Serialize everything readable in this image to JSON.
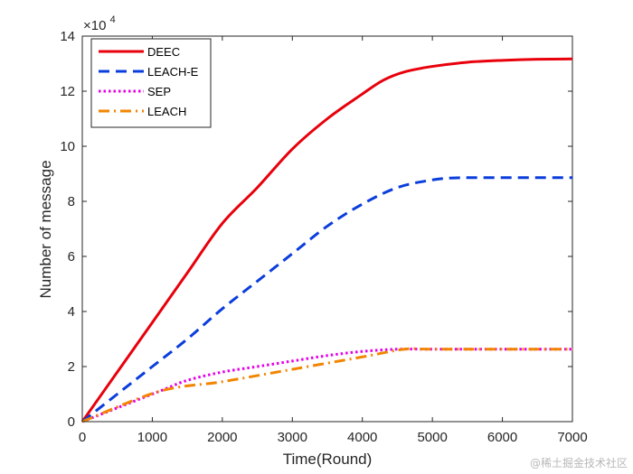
{
  "chart_data": {
    "type": "line",
    "title": "",
    "xlabel": "Time(Round)",
    "ylabel": "Number of message",
    "y_multiplier_label": "×10",
    "y_multiplier_exponent": "4",
    "xlim": [
      0,
      7000
    ],
    "ylim": [
      0,
      14
    ],
    "xticks": [
      0,
      1000,
      2000,
      3000,
      4000,
      5000,
      6000,
      7000
    ],
    "yticks": [
      0,
      2,
      4,
      6,
      8,
      10,
      12,
      14
    ],
    "xtick_labels": [
      "0",
      "1000",
      "2000",
      "3000",
      "4000",
      "5000",
      "6000",
      "7000"
    ],
    "ytick_labels": [
      "0",
      "2",
      "4",
      "6",
      "8",
      "10",
      "12",
      "14"
    ],
    "grid": false,
    "legend_position": "top-left",
    "series": [
      {
        "name": "DEEC",
        "color": "#e8000b",
        "style": "solid",
        "x": [
          0,
          500,
          1000,
          1500,
          2000,
          2500,
          3000,
          3500,
          4000,
          4300,
          4600,
          5000,
          5500,
          6000,
          6500,
          7000
        ],
        "y": [
          0,
          1.8,
          3.6,
          5.4,
          7.2,
          8.5,
          9.9,
          11.0,
          11.9,
          12.4,
          12.7,
          12.9,
          13.05,
          13.12,
          13.16,
          13.17
        ]
      },
      {
        "name": "LEACH-E",
        "color": "#0a3ddc",
        "style": "dashed",
        "x": [
          0,
          500,
          1000,
          1500,
          2000,
          2500,
          3000,
          3500,
          4000,
          4500,
          5000,
          5300,
          5600,
          6000,
          6500,
          7000
        ],
        "y": [
          0,
          1.0,
          2.0,
          3.0,
          4.1,
          5.1,
          6.1,
          7.1,
          7.9,
          8.5,
          8.78,
          8.85,
          8.86,
          8.86,
          8.86,
          8.86
        ]
      },
      {
        "name": "SEP",
        "color": "#e600e6",
        "style": "dotted",
        "x": [
          0,
          1100,
          1500,
          2000,
          2500,
          3000,
          3500,
          4000,
          4500,
          5000,
          6000,
          7000
        ],
        "y": [
          0,
          1.1,
          1.5,
          1.8,
          2.0,
          2.2,
          2.4,
          2.55,
          2.63,
          2.63,
          2.63,
          2.63
        ]
      },
      {
        "name": "LEACH",
        "color": "#f28500",
        "style": "dash-dot",
        "x": [
          0,
          1100,
          2000,
          3000,
          4000,
          4600,
          5000,
          6000,
          7000
        ],
        "y": [
          0,
          1.1,
          1.45,
          1.9,
          2.35,
          2.63,
          2.63,
          2.63,
          2.63
        ]
      }
    ]
  },
  "watermark": "@稀土掘金技术社区"
}
